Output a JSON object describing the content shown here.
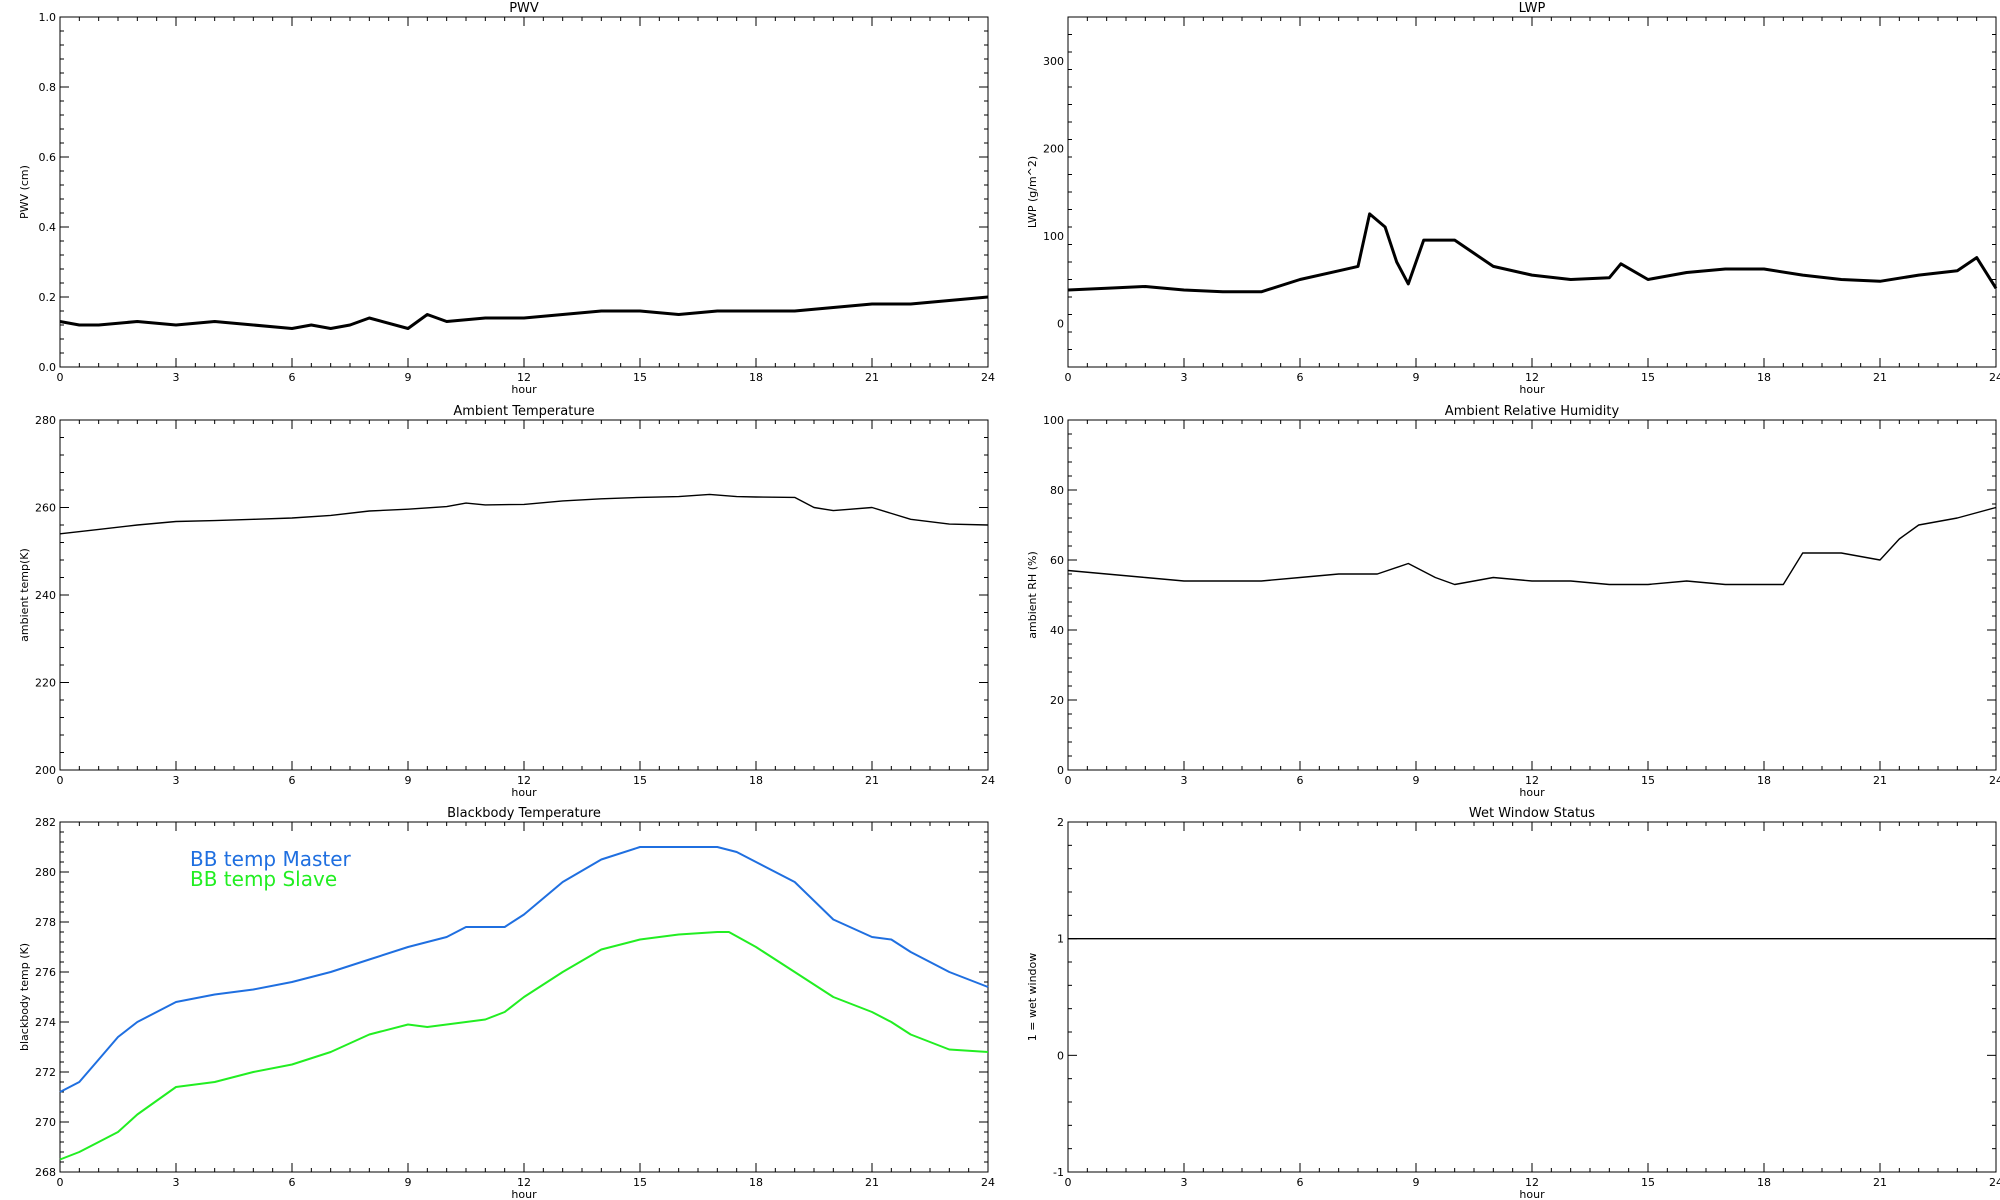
{
  "chart_data": [
    {
      "id": "pwv",
      "type": "line",
      "title": "PWV",
      "xlabel": "hour",
      "ylabel": "PWV (cm)",
      "xlim": [
        0,
        24
      ],
      "ylim": [
        0,
        1.0
      ],
      "xticks": [
        0,
        3,
        6,
        9,
        12,
        15,
        18,
        21,
        24
      ],
      "yticks": [
        0.0,
        0.2,
        0.4,
        0.6,
        0.8,
        1.0
      ],
      "ytick_labels": [
        "0.0",
        "0.2",
        "0.4",
        "0.6",
        "0.8",
        "1.0"
      ],
      "color": "#000000",
      "series": [
        {
          "x": [
            0,
            0.5,
            1,
            2,
            3,
            4,
            5,
            6,
            6.5,
            7,
            7.5,
            8,
            9,
            9.5,
            10,
            11,
            12,
            13,
            14,
            15,
            16,
            17,
            18,
            19,
            20,
            21,
            22,
            23,
            24
          ],
          "y": [
            0.13,
            0.12,
            0.12,
            0.13,
            0.12,
            0.13,
            0.12,
            0.11,
            0.12,
            0.11,
            0.12,
            0.14,
            0.11,
            0.15,
            0.13,
            0.14,
            0.14,
            0.15,
            0.16,
            0.16,
            0.15,
            0.16,
            0.16,
            0.16,
            0.17,
            0.18,
            0.18,
            0.19,
            0.2
          ]
        }
      ]
    },
    {
      "id": "lwp",
      "type": "line",
      "title": "LWP",
      "xlabel": "hour",
      "ylabel": "LWP (g/m^2)",
      "xlim": [
        0,
        24
      ],
      "ylim": [
        -50,
        350
      ],
      "xticks": [
        0,
        3,
        6,
        9,
        12,
        15,
        18,
        21,
        24
      ],
      "yticks": [
        0,
        100,
        200,
        300
      ],
      "ytick_labels": [
        "0",
        "100",
        "200",
        "300"
      ],
      "color": "#000000",
      "series": [
        {
          "x": [
            0,
            1,
            2,
            3,
            4,
            5,
            6,
            7,
            7.5,
            7.8,
            8.2,
            8.5,
            8.8,
            9.2,
            10,
            10.5,
            11,
            12,
            13,
            14,
            14.3,
            15,
            16,
            17,
            18,
            19,
            20,
            21,
            22,
            23,
            23.5,
            24
          ],
          "y": [
            38,
            40,
            42,
            38,
            36,
            36,
            50,
            60,
            65,
            125,
            110,
            70,
            45,
            95,
            95,
            80,
            65,
            55,
            50,
            52,
            68,
            50,
            58,
            62,
            62,
            55,
            50,
            48,
            55,
            60,
            75,
            40
          ]
        }
      ]
    },
    {
      "id": "ambient-temp",
      "type": "line",
      "title": "Ambient Temperature",
      "xlabel": "hour",
      "ylabel": "ambient temp(K)",
      "xlim": [
        0,
        24
      ],
      "ylim": [
        200,
        280
      ],
      "xticks": [
        0,
        3,
        6,
        9,
        12,
        15,
        18,
        21,
        24
      ],
      "yticks": [
        200,
        220,
        240,
        260,
        280
      ],
      "ytick_labels": [
        "200",
        "220",
        "240",
        "260",
        "280"
      ],
      "color": "#000000",
      "series": [
        {
          "x": [
            0,
            1,
            2,
            3,
            4,
            5,
            6,
            7,
            8,
            9,
            10,
            10.5,
            11,
            12,
            13,
            14,
            15,
            16,
            16.8,
            17.5,
            18,
            19,
            19.5,
            20,
            21,
            22,
            23,
            24
          ],
          "y": [
            254,
            255,
            256,
            256.8,
            257,
            257.3,
            257.6,
            258.2,
            259.2,
            259.6,
            260.2,
            261,
            260.6,
            260.7,
            261.5,
            262,
            262.3,
            262.5,
            263,
            262.5,
            262.4,
            262.3,
            260,
            259.3,
            260,
            257.3,
            256.2,
            256
          ]
        }
      ]
    },
    {
      "id": "ambient-rh",
      "type": "line",
      "title": "Ambient Relative Humidity",
      "xlabel": "hour",
      "ylabel": "ambient RH (%)",
      "xlim": [
        0,
        24
      ],
      "ylim": [
        0,
        100
      ],
      "xticks": [
        0,
        3,
        6,
        9,
        12,
        15,
        18,
        21,
        24
      ],
      "yticks": [
        0,
        20,
        40,
        60,
        80,
        100
      ],
      "ytick_labels": [
        "0",
        "20",
        "40",
        "60",
        "80",
        "100"
      ],
      "color": "#000000",
      "series": [
        {
          "x": [
            0,
            1,
            2,
            3,
            4,
            5,
            6,
            7,
            8,
            8.8,
            9.5,
            10,
            11,
            12,
            13,
            14,
            15,
            16,
            17,
            18,
            18.5,
            19,
            20,
            21,
            21.5,
            22,
            23,
            24
          ],
          "y": [
            57,
            56,
            55,
            54,
            54,
            54,
            55,
            56,
            56,
            59,
            55,
            53,
            55,
            54,
            54,
            53,
            53,
            54,
            53,
            53,
            53,
            62,
            62,
            60,
            66,
            70,
            72,
            75
          ]
        }
      ]
    },
    {
      "id": "bb-temp",
      "type": "line",
      "title": "Blackbody Temperature",
      "xlabel": "hour",
      "ylabel": "blackbody temp (K)",
      "xlim": [
        0,
        24
      ],
      "ylim": [
        268,
        282
      ],
      "xticks": [
        0,
        3,
        6,
        9,
        12,
        15,
        18,
        21,
        24
      ],
      "yticks": [
        268,
        270,
        272,
        274,
        276,
        278,
        280,
        282
      ],
      "ytick_labels": [
        "268",
        "270",
        "272",
        "274",
        "276",
        "278",
        "280",
        "282"
      ],
      "series": [
        {
          "name": "BB temp Master",
          "color": "#1f6fe0",
          "x": [
            0,
            0.5,
            1,
            1.5,
            2,
            3,
            4,
            5,
            6,
            7,
            8,
            9,
            9.5,
            10,
            10.5,
            11,
            11.5,
            12,
            13,
            14,
            15,
            15.5,
            16,
            17,
            17.5,
            18,
            19,
            20,
            21,
            21.5,
            22,
            23,
            24
          ],
          "y": [
            271.2,
            271.6,
            272.5,
            273.4,
            274,
            274.8,
            275.1,
            275.3,
            275.6,
            276,
            276.5,
            277,
            277.2,
            277.4,
            277.8,
            277.8,
            277.8,
            278.3,
            279.6,
            280.5,
            281,
            281,
            281,
            281,
            280.8,
            280.4,
            279.6,
            278.1,
            277.4,
            277.3,
            276.8,
            276,
            275.4
          ]
        },
        {
          "name": "BB temp Slave",
          "color": "#22ee22",
          "x": [
            0,
            0.5,
            1,
            1.5,
            2,
            3,
            3.5,
            4,
            5,
            6,
            7,
            8,
            9,
            9.5,
            10,
            10.5,
            11,
            11.5,
            12,
            13,
            14,
            15,
            16,
            17,
            17.3,
            18,
            19,
            20,
            21,
            21.5,
            22,
            23,
            24
          ],
          "y": [
            268.5,
            268.8,
            269.2,
            269.6,
            270.3,
            271.4,
            271.5,
            271.6,
            272,
            272.3,
            272.8,
            273.5,
            273.9,
            273.8,
            273.9,
            274,
            274.1,
            274.4,
            275,
            276,
            276.9,
            277.3,
            277.5,
            277.6,
            277.6,
            277,
            276,
            275,
            274.4,
            274,
            273.5,
            272.9,
            272.8
          ]
        }
      ]
    },
    {
      "id": "wet-window",
      "type": "line",
      "title": "Wet Window Status",
      "xlabel": "hour",
      "ylabel": "1 = wet window",
      "xlim": [
        0,
        24
      ],
      "ylim": [
        -1,
        2
      ],
      "xticks": [
        0,
        3,
        6,
        9,
        12,
        15,
        18,
        21,
        24
      ],
      "yticks": [
        -1,
        0,
        1,
        2
      ],
      "ytick_labels": [
        "-1",
        "0",
        "1",
        "2"
      ],
      "color": "#000000",
      "series": [
        {
          "x": [
            0,
            24
          ],
          "y": [
            1,
            1
          ]
        }
      ]
    }
  ]
}
